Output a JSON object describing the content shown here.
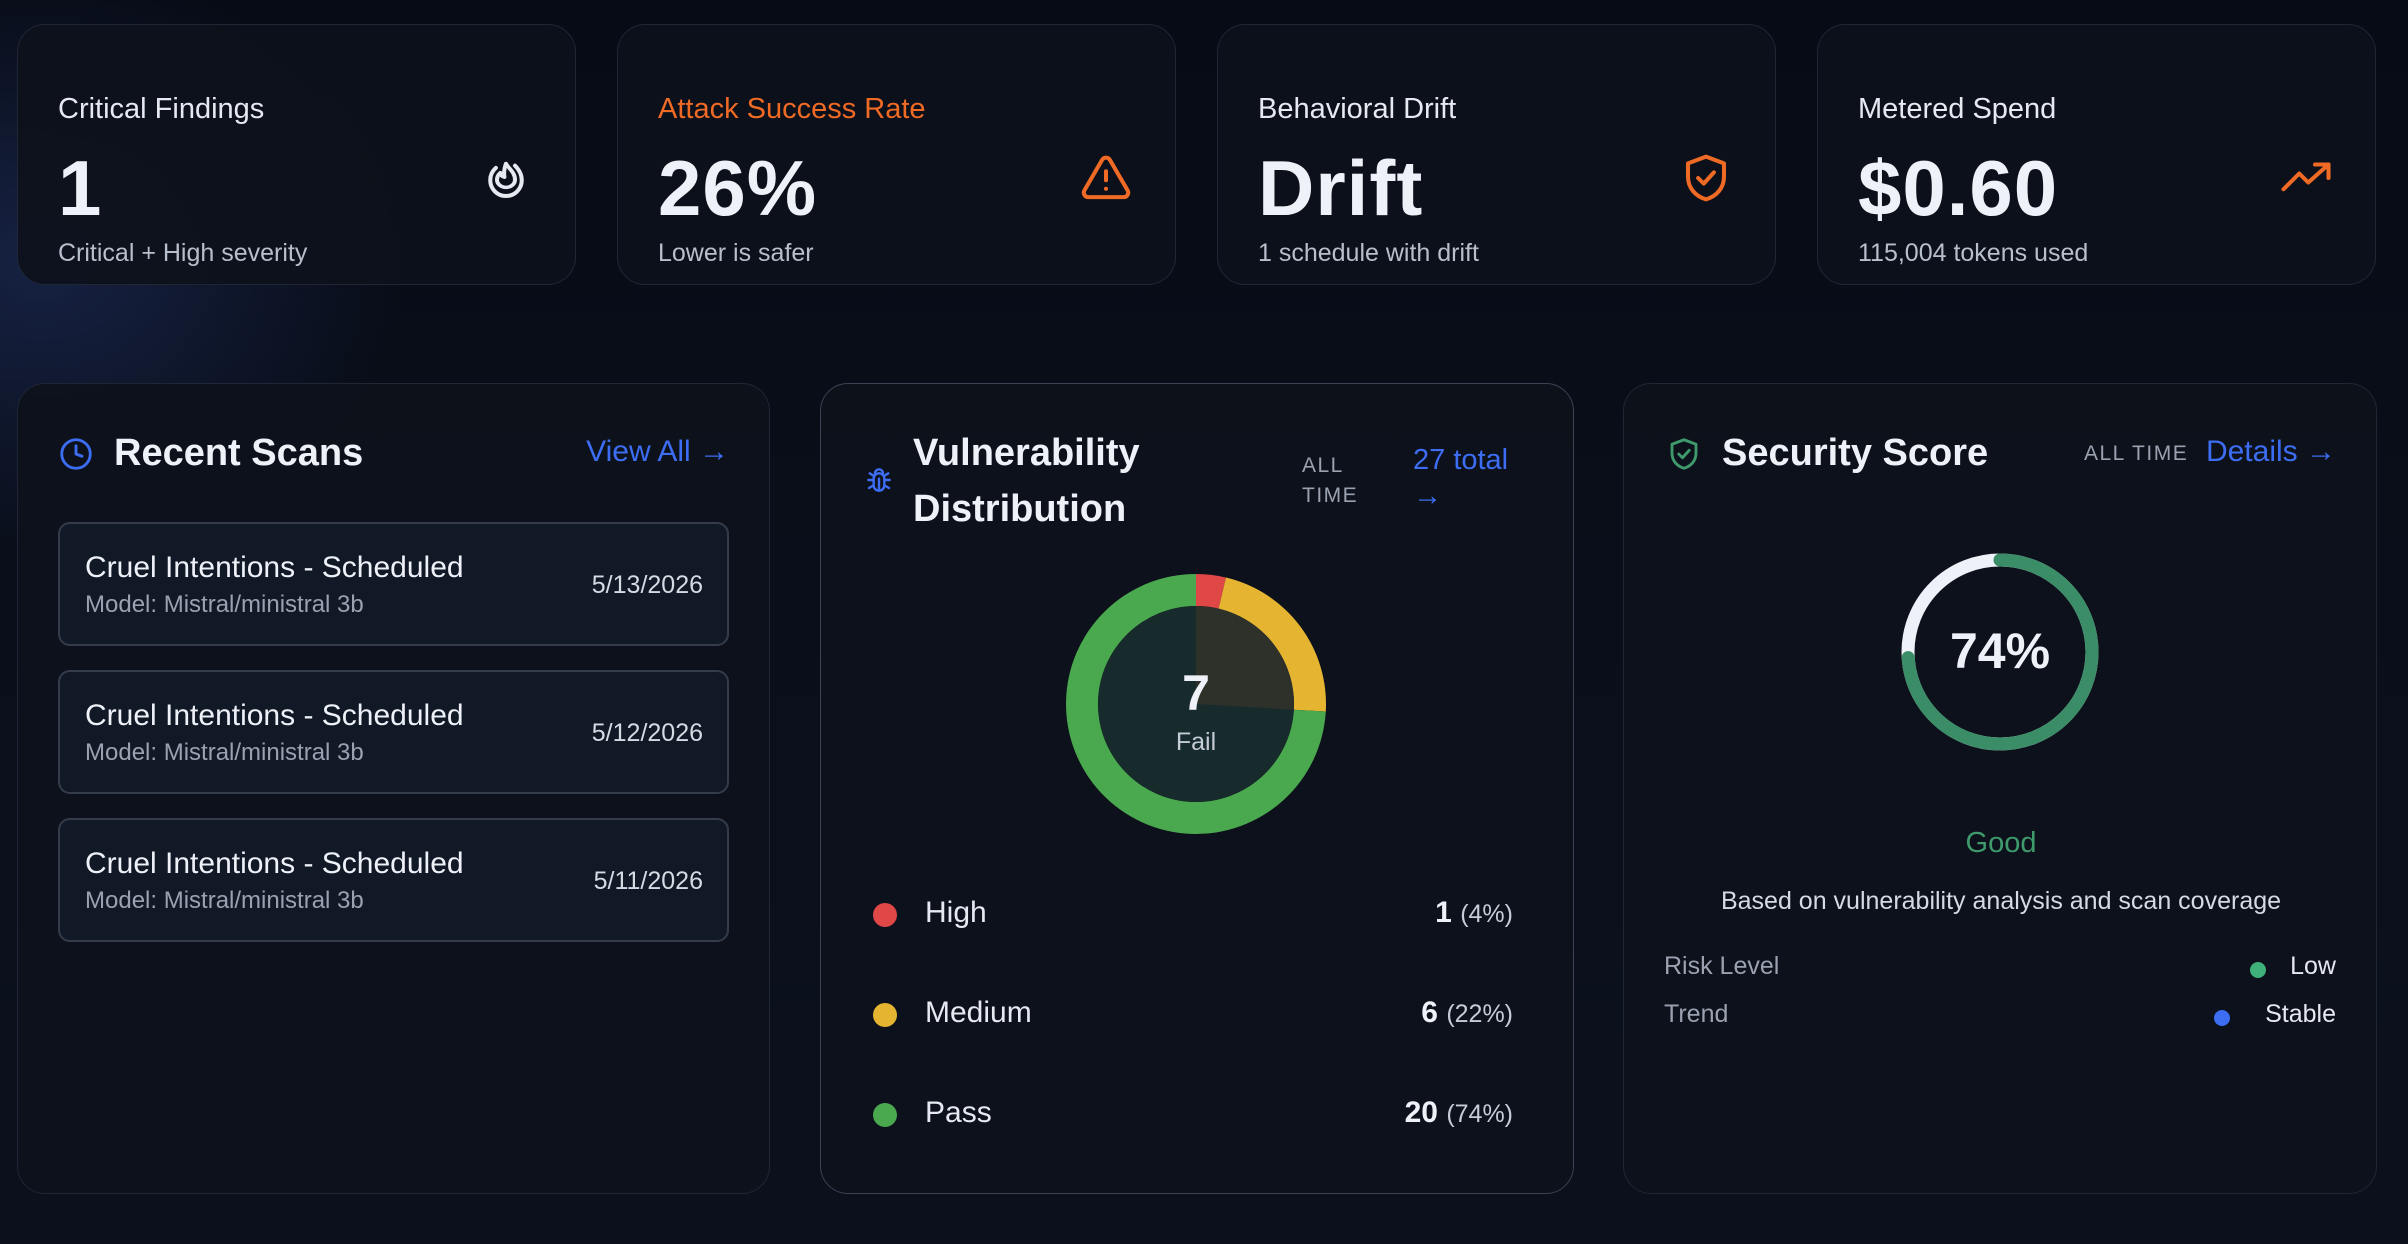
{
  "colors": {
    "accent_blue": "#3d6df2",
    "accent_orange": "#ef6a25",
    "high_red": "#e04848",
    "medium_yellow": "#e5b532",
    "pass_green": "#4aa84e",
    "good_green": "#3f9a6c",
    "stable_blue": "#3d6df2"
  },
  "stats": [
    {
      "label": "Critical Findings",
      "value": "1",
      "sub": "Critical + High severity",
      "icon": "flame-icon"
    },
    {
      "label": "Attack Success Rate",
      "value": "26%",
      "sub": "Lower is safer",
      "icon": "warning-triangle-icon"
    },
    {
      "label": "Behavioral Drift",
      "value": "Drift",
      "sub": "1 schedule with drift",
      "icon": "shield-check-icon"
    },
    {
      "label": "Metered Spend",
      "value": "$0.60",
      "sub": "115,004 tokens used",
      "icon": "trending-up-icon"
    }
  ],
  "recent_scans": {
    "title": "Recent Scans",
    "view_all": "View All →",
    "icon": "clock-icon",
    "items": [
      {
        "name": "Cruel Intentions - Scheduled",
        "model": "Model: Mistral/ministral 3b",
        "date": "5/13/2026"
      },
      {
        "name": "Cruel Intentions - Scheduled",
        "model": "Model: Mistral/ministral 3b",
        "date": "5/12/2026"
      },
      {
        "name": "Cruel Intentions - Scheduled",
        "model": "Model: Mistral/ministral 3b",
        "date": "5/11/2026"
      }
    ]
  },
  "vulnerability": {
    "title_line1": "Vulnerability",
    "title_line2": "Distribution",
    "range_line1": "ALL",
    "range_line2": "TIME",
    "total_line1": "27 total",
    "total_line2": "→",
    "icon": "bug-icon",
    "center_value": "7",
    "center_label": "Fail",
    "legend": [
      {
        "name": "High",
        "count": "1",
        "pct": "(4%)"
      },
      {
        "name": "Medium",
        "count": "6",
        "pct": "(22%)"
      },
      {
        "name": "Pass",
        "count": "20",
        "pct": "(74%)"
      }
    ]
  },
  "chart_data": {
    "type": "pie",
    "categories": [
      "High",
      "Medium",
      "Pass"
    ],
    "values": [
      1,
      6,
      20
    ],
    "colors": [
      "#e04848",
      "#e5b532",
      "#4aa84e"
    ]
  },
  "security": {
    "title": "Security Score",
    "range": "ALL TIME",
    "details": "Details →",
    "icon": "shield-check-icon",
    "score": "74%",
    "score_fraction": 0.74,
    "rating": "Good",
    "basis": "Based on vulnerability analysis and scan coverage",
    "rows": [
      {
        "key": "Risk Level",
        "value": "Low",
        "dot": "#3fb07a"
      },
      {
        "key": "Trend",
        "value": "Stable",
        "dot": "#3d6df2"
      }
    ]
  }
}
